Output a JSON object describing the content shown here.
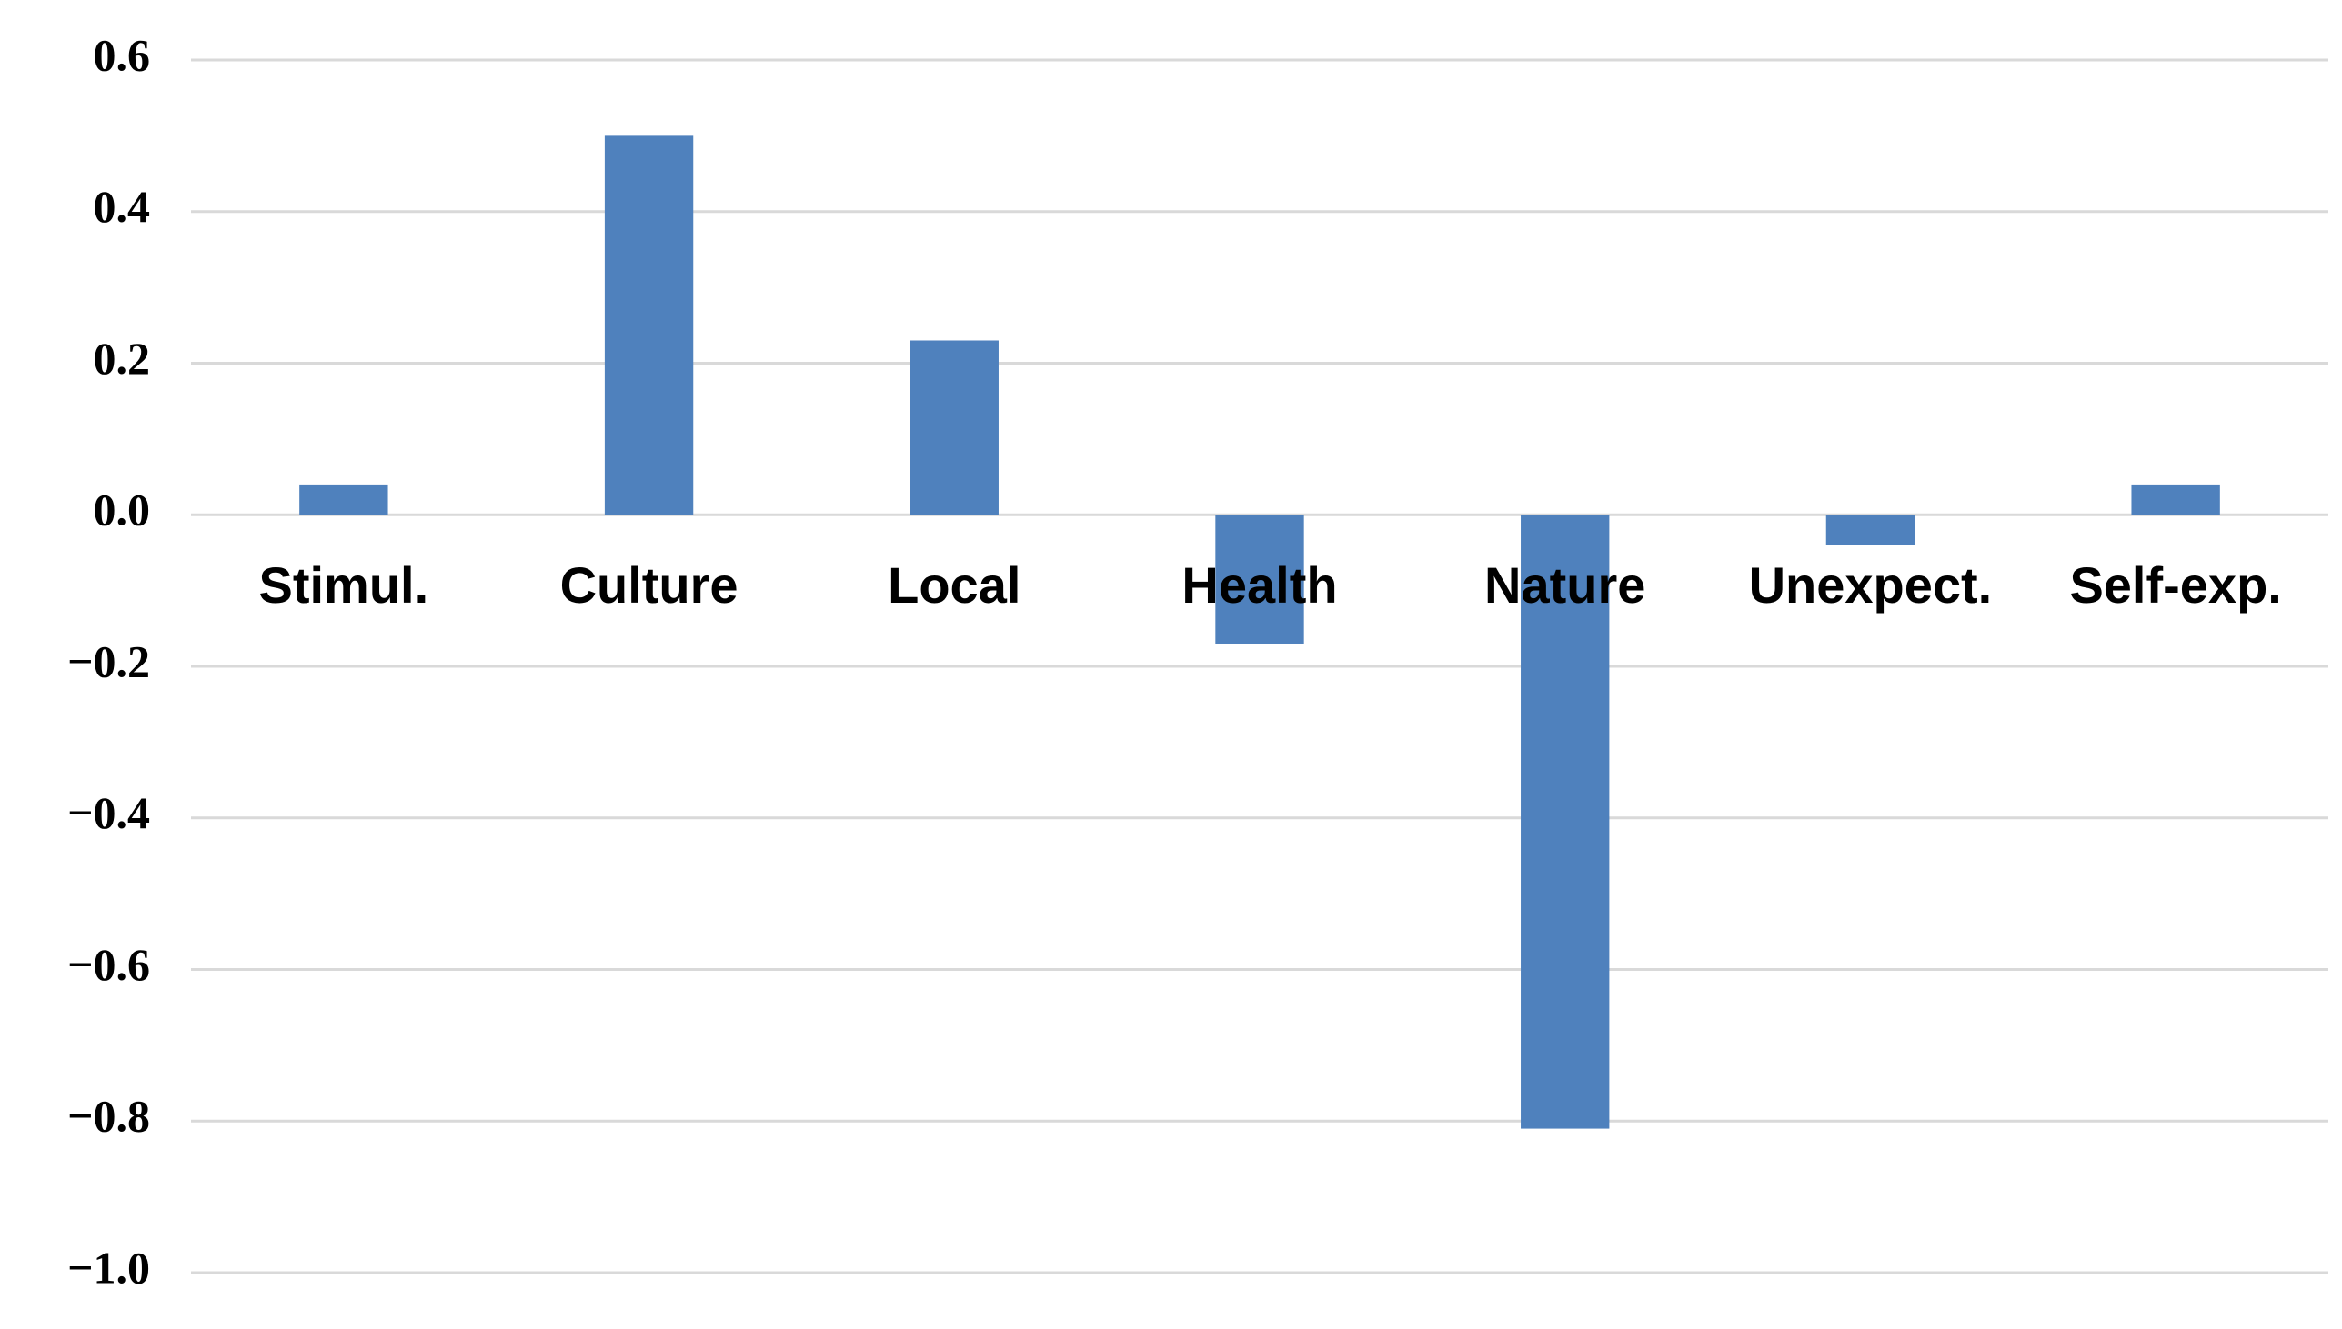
{
  "chart_data": {
    "type": "bar",
    "categories": [
      "Stimul.",
      "Culture",
      "Local",
      "Health",
      "Nature",
      "Unexpect.",
      "Self-exp."
    ],
    "values": [
      0.04,
      0.5,
      0.23,
      -0.17,
      -0.81,
      -0.04,
      0.04
    ],
    "color": "#4f81bd",
    "ylim": [
      -1.0,
      0.6
    ],
    "yticks": [
      {
        "value": -1.0,
        "label": "−1.0"
      },
      {
        "value": -0.8,
        "label": "−0.8"
      },
      {
        "value": -0.6,
        "label": "−0.6"
      },
      {
        "value": -0.4,
        "label": "−0.4"
      },
      {
        "value": -0.2,
        "label": "−0.2"
      },
      {
        "value": 0,
        "label": "0.0"
      },
      0.2,
      0.4,
      0.6
    ],
    "grid": true
  }
}
